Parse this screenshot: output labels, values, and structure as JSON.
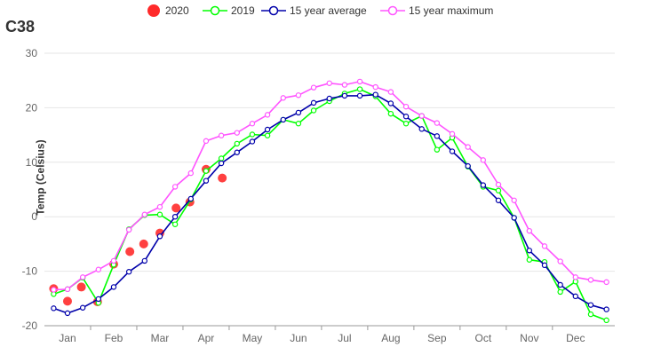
{
  "chart_data": {
    "type": "line",
    "title": "C38",
    "ylabel": "Temp (Celsius)",
    "xlabel": "",
    "ylim": [
      -20,
      30
    ],
    "yticks": [
      -20,
      -10,
      0,
      10,
      20,
      30
    ],
    "grid": true,
    "legend_position": "top-center",
    "categories": [
      "Jan",
      "Feb",
      "Mar",
      "Apr",
      "May",
      "Jun",
      "Jul",
      "Aug",
      "Sep",
      "Oct",
      "Nov",
      "Dec"
    ],
    "series": [
      {
        "name": "2020",
        "kind": "scatter",
        "color": "#ff0000",
        "x": [
          0.7,
          1.0,
          1.3,
          1.65,
          2.0,
          2.35,
          2.65,
          3.0,
          3.35,
          3.65,
          4.0,
          4.35
        ],
        "values": [
          -13.2,
          -15.5,
          -12.9,
          -15.6,
          -8.7,
          -6.4,
          -5.0,
          -3.0,
          1.6,
          2.7,
          8.7,
          7.1
        ]
      },
      {
        "name": "2019",
        "kind": "line",
        "color": "#00ff00",
        "x": [
          0.7,
          1.0,
          1.33,
          1.67,
          2.0,
          2.33,
          2.67,
          3.0,
          3.33,
          3.67,
          4.0,
          4.33,
          4.67,
          5.0,
          5.33,
          5.67,
          6.0,
          6.33,
          6.67,
          7.0,
          7.33,
          7.67,
          8.0,
          8.33,
          8.67,
          9.0,
          9.33,
          9.67,
          10.0,
          10.33,
          10.67,
          11.0,
          11.33,
          11.67,
          12.0,
          12.33,
          12.67
        ],
        "values": [
          -14.2,
          -13.3,
          -11.2,
          -15.8,
          -8.8,
          -2.3,
          0.3,
          0.4,
          -1.4,
          3.2,
          8.4,
          10.7,
          13.4,
          15.1,
          14.9,
          17.8,
          17.1,
          19.5,
          21.2,
          22.6,
          23.4,
          22.1,
          18.9,
          17.1,
          18.5,
          12.3,
          14.5,
          9.2,
          5.5,
          4.8,
          -0.2,
          -7.9,
          -8.3,
          -13.8,
          -11.9,
          -17.9,
          -19.0
        ]
      },
      {
        "name": "15 year average",
        "kind": "line",
        "color": "#0000aa",
        "x": [
          0.7,
          1.0,
          1.33,
          1.67,
          2.0,
          2.33,
          2.67,
          3.0,
          3.33,
          3.67,
          4.0,
          4.33,
          4.67,
          5.0,
          5.33,
          5.67,
          6.0,
          6.33,
          6.67,
          7.0,
          7.33,
          7.67,
          8.0,
          8.33,
          8.67,
          9.0,
          9.33,
          9.67,
          10.0,
          10.33,
          10.67,
          11.0,
          11.33,
          11.67,
          12.0,
          12.33,
          12.67
        ],
        "values": [
          -16.8,
          -17.7,
          -16.7,
          -15.1,
          -12.9,
          -10.1,
          -8.1,
          -3.6,
          0.0,
          3.3,
          6.6,
          9.8,
          11.8,
          13.8,
          16.0,
          17.8,
          19.1,
          20.9,
          21.7,
          22.2,
          22.2,
          22.4,
          20.8,
          18.4,
          16.1,
          14.8,
          12.0,
          9.3,
          5.8,
          3.0,
          -0.2,
          -6.2,
          -8.9,
          -12.5,
          -14.6,
          -16.2,
          -17.0
        ]
      },
      {
        "name": "15 year maximum",
        "kind": "line",
        "color": "#ff55ff",
        "x": [
          0.7,
          1.0,
          1.33,
          1.67,
          2.0,
          2.33,
          2.67,
          3.0,
          3.33,
          3.67,
          4.0,
          4.33,
          4.67,
          5.0,
          5.33,
          5.67,
          6.0,
          6.33,
          6.67,
          7.0,
          7.33,
          7.67,
          8.0,
          8.33,
          8.67,
          9.0,
          9.33,
          9.67,
          10.0,
          10.33,
          10.67,
          11.0,
          11.33,
          11.67,
          12.0,
          12.33,
          12.67
        ],
        "values": [
          -13.4,
          -13.3,
          -11.1,
          -9.7,
          -8.1,
          -2.4,
          0.4,
          1.8,
          5.5,
          8.0,
          13.9,
          14.9,
          15.4,
          17.1,
          18.7,
          21.8,
          22.3,
          23.7,
          24.5,
          24.2,
          24.8,
          23.8,
          22.9,
          20.2,
          18.5,
          17.2,
          15.2,
          12.8,
          10.4,
          5.9,
          3.0,
          -2.6,
          -5.4,
          -8.2,
          -11.1,
          -11.6,
          -12.0
        ]
      }
    ]
  }
}
